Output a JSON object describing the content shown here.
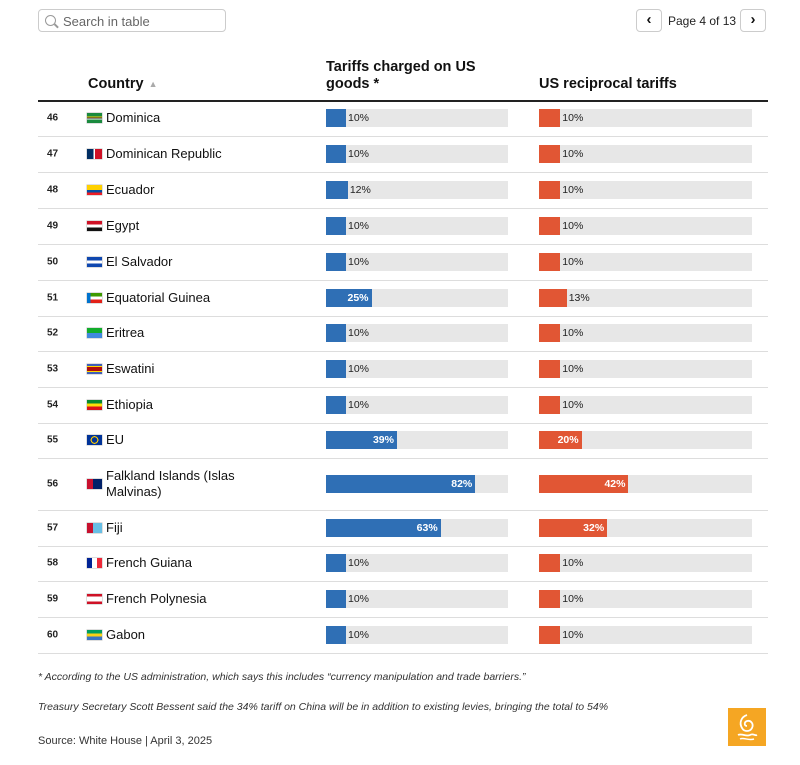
{
  "search": {
    "placeholder": "Search in table"
  },
  "pagination": {
    "label": "Page 4 of 13",
    "prev_icon": "chevron-left-icon",
    "next_icon": "chevron-right-icon"
  },
  "table": {
    "headers": {
      "country": "Country",
      "sort_indicator": "▲",
      "charged": "Tariffs charged on US goods *",
      "reciprocal": "US reciprocal tariffs"
    },
    "colors": {
      "charged": "#2f6fb5",
      "reciprocal": "#e15634",
      "track": "#e7e7e7"
    },
    "rows": [
      {
        "rank": "46",
        "country": "Dominica",
        "flag": "dominica-flag",
        "charged": 10,
        "charged_label": "10%",
        "reciprocal": 10,
        "reciprocal_label": "10%"
      },
      {
        "rank": "47",
        "country": "Dominican Republic",
        "flag": "dominican-republic-flag",
        "charged": 10,
        "charged_label": "10%",
        "reciprocal": 10,
        "reciprocal_label": "10%"
      },
      {
        "rank": "48",
        "country": "Ecuador",
        "flag": "ecuador-flag",
        "charged": 12,
        "charged_label": "12%",
        "reciprocal": 10,
        "reciprocal_label": "10%"
      },
      {
        "rank": "49",
        "country": "Egypt",
        "flag": "egypt-flag",
        "charged": 10,
        "charged_label": "10%",
        "reciprocal": 10,
        "reciprocal_label": "10%"
      },
      {
        "rank": "50",
        "country": "El Salvador",
        "flag": "el-salvador-flag",
        "charged": 10,
        "charged_label": "10%",
        "reciprocal": 10,
        "reciprocal_label": "10%"
      },
      {
        "rank": "51",
        "country": "Equatorial Guinea",
        "flag": "equatorial-guinea-flag",
        "charged": 25,
        "charged_label": "25%",
        "reciprocal": 13,
        "reciprocal_label": "13%"
      },
      {
        "rank": "52",
        "country": "Eritrea",
        "flag": "eritrea-flag",
        "charged": 10,
        "charged_label": "10%",
        "reciprocal": 10,
        "reciprocal_label": "10%"
      },
      {
        "rank": "53",
        "country": "Eswatini",
        "flag": "eswatini-flag",
        "charged": 10,
        "charged_label": "10%",
        "reciprocal": 10,
        "reciprocal_label": "10%"
      },
      {
        "rank": "54",
        "country": "Ethiopia",
        "flag": "ethiopia-flag",
        "charged": 10,
        "charged_label": "10%",
        "reciprocal": 10,
        "reciprocal_label": "10%"
      },
      {
        "rank": "55",
        "country": "EU",
        "flag": "eu-flag",
        "charged": 39,
        "charged_label": "39%",
        "reciprocal": 20,
        "reciprocal_label": "20%"
      },
      {
        "rank": "56",
        "country": "Falkland Islands (Islas Malvinas)",
        "flag": "falkland-islands-flag",
        "charged": 82,
        "charged_label": "82%",
        "reciprocal": 42,
        "reciprocal_label": "42%"
      },
      {
        "rank": "57",
        "country": "Fiji",
        "flag": "fiji-flag",
        "charged": 63,
        "charged_label": "63%",
        "reciprocal": 32,
        "reciprocal_label": "32%"
      },
      {
        "rank": "58",
        "country": "French Guiana",
        "flag": "french-guiana-flag",
        "charged": 10,
        "charged_label": "10%",
        "reciprocal": 10,
        "reciprocal_label": "10%"
      },
      {
        "rank": "59",
        "country": "French Polynesia",
        "flag": "french-polynesia-flag",
        "charged": 10,
        "charged_label": "10%",
        "reciprocal": 10,
        "reciprocal_label": "10%"
      },
      {
        "rank": "60",
        "country": "Gabon",
        "flag": "gabon-flag",
        "charged": 10,
        "charged_label": "10%",
        "reciprocal": 10,
        "reciprocal_label": "10%"
      }
    ]
  },
  "footnotes": {
    "asterisk": "* According to the US administration, which says this includes “currency manipulation and trade barriers.”",
    "treasury": "Treasury Secretary Scott Bessent said the 34% tariff on China will be in addition to existing levies, bringing the total to 54%",
    "source": "Source: White House | April 3, 2025"
  },
  "logo": {
    "name": "al-jazeera-logo",
    "color": "#f5a623"
  }
}
